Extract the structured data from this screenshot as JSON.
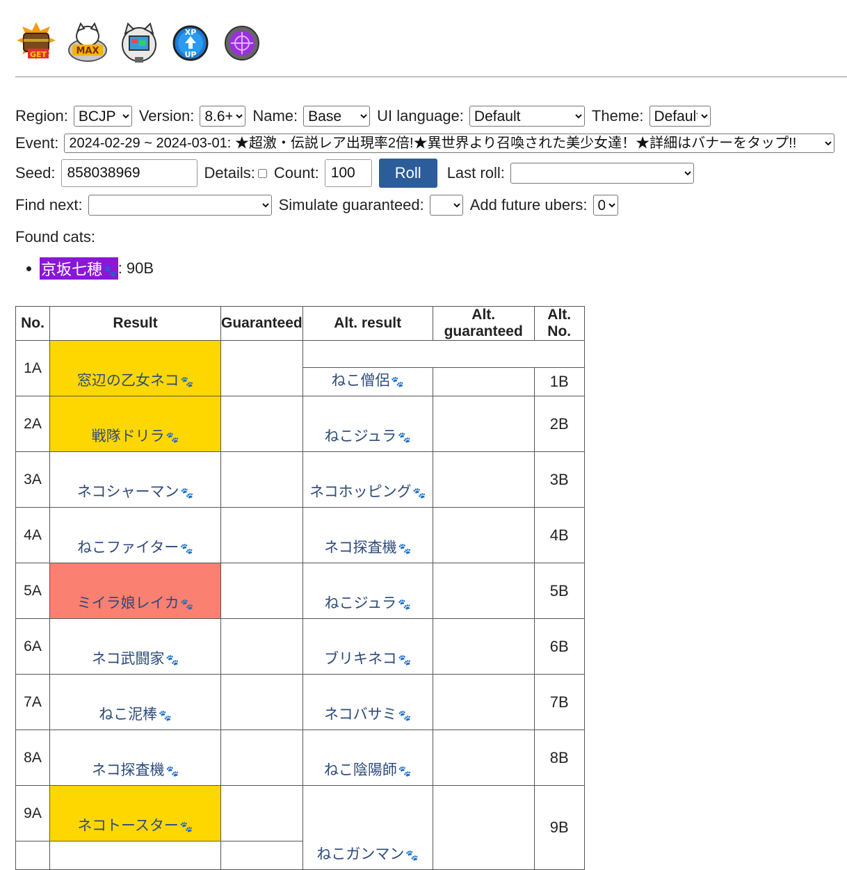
{
  "header_icons": [
    "treasure-get-icon",
    "max-cat-icon",
    "monitor-cat-icon",
    "xp-up-icon",
    "purple-orb-icon"
  ],
  "controls": {
    "region_label": "Region:",
    "region_value": "BCJP",
    "version_label": "Version:",
    "version_value": "8.6+",
    "name_label": "Name:",
    "name_value": "Base",
    "ui_language_label": "UI language:",
    "ui_language_value": "Default",
    "theme_label": "Theme:",
    "theme_value": "Default",
    "event_label": "Event:",
    "event_value": "2024-02-29 ~ 2024-03-01: ★超激・伝説レア出現率2倍!★異世界より召喚された美少女達！★詳細はバナーをタップ!!",
    "seed_label": "Seed:",
    "seed_value": "858038969",
    "details_label": "Details:",
    "count_label": "Count:",
    "count_value": "100",
    "roll_button": "Roll",
    "last_roll_label": "Last roll:",
    "find_next_label": "Find next:",
    "simulate_label": "Simulate guaranteed:",
    "future_ubers_label": "Add future ubers:",
    "future_ubers_value": "0"
  },
  "found": {
    "title": "Found cats:",
    "items": [
      {
        "name": "京坂七穂",
        "suffix": ": 90B"
      }
    ]
  },
  "table": {
    "headers": [
      "No.",
      "Result",
      "Guaranteed",
      "Alt. result",
      "Alt. guaranteed",
      "Alt. No."
    ],
    "a_rows": [
      {
        "no": "1A",
        "cat": "窓辺の乙女ネコ"
      },
      {
        "no": "2A",
        "cat": "戦隊ドリラ"
      },
      {
        "no": "3A",
        "cat": "ネコシャーマン"
      },
      {
        "no": "4A",
        "cat": "ねこファイター"
      },
      {
        "no": "5A",
        "cat": "ミイラ娘レイカ"
      },
      {
        "no": "6A",
        "cat": "ネコ武闘家"
      },
      {
        "no": "7A",
        "cat": "ねこ泥棒"
      },
      {
        "no": "8A",
        "cat": "ネコ探査機"
      },
      {
        "no": "9A",
        "cat": "ネコトースター"
      }
    ],
    "b_rows": [
      {
        "no": "1B",
        "cat": "ねこ僧侶"
      },
      {
        "no": "2B",
        "cat": "ねこジュラ"
      },
      {
        "no": "3B",
        "cat": "ネコホッピング"
      },
      {
        "no": "4B",
        "cat": "ネコ探査機"
      },
      {
        "no": "5B",
        "cat": "ねこジュラ"
      },
      {
        "no": "6B",
        "cat": "ブリキネコ"
      },
      {
        "no": "7B",
        "cat": "ネコバサミ"
      },
      {
        "no": "8B",
        "cat": "ねこ陰陽師"
      },
      {
        "no": "9B",
        "cat": "ねこガンマン"
      }
    ]
  },
  "colors": {
    "uber": "#ffd700",
    "legend": "#fa8072",
    "found_highlight": "#8a16d8",
    "roll_button": "#2b5d9a"
  }
}
